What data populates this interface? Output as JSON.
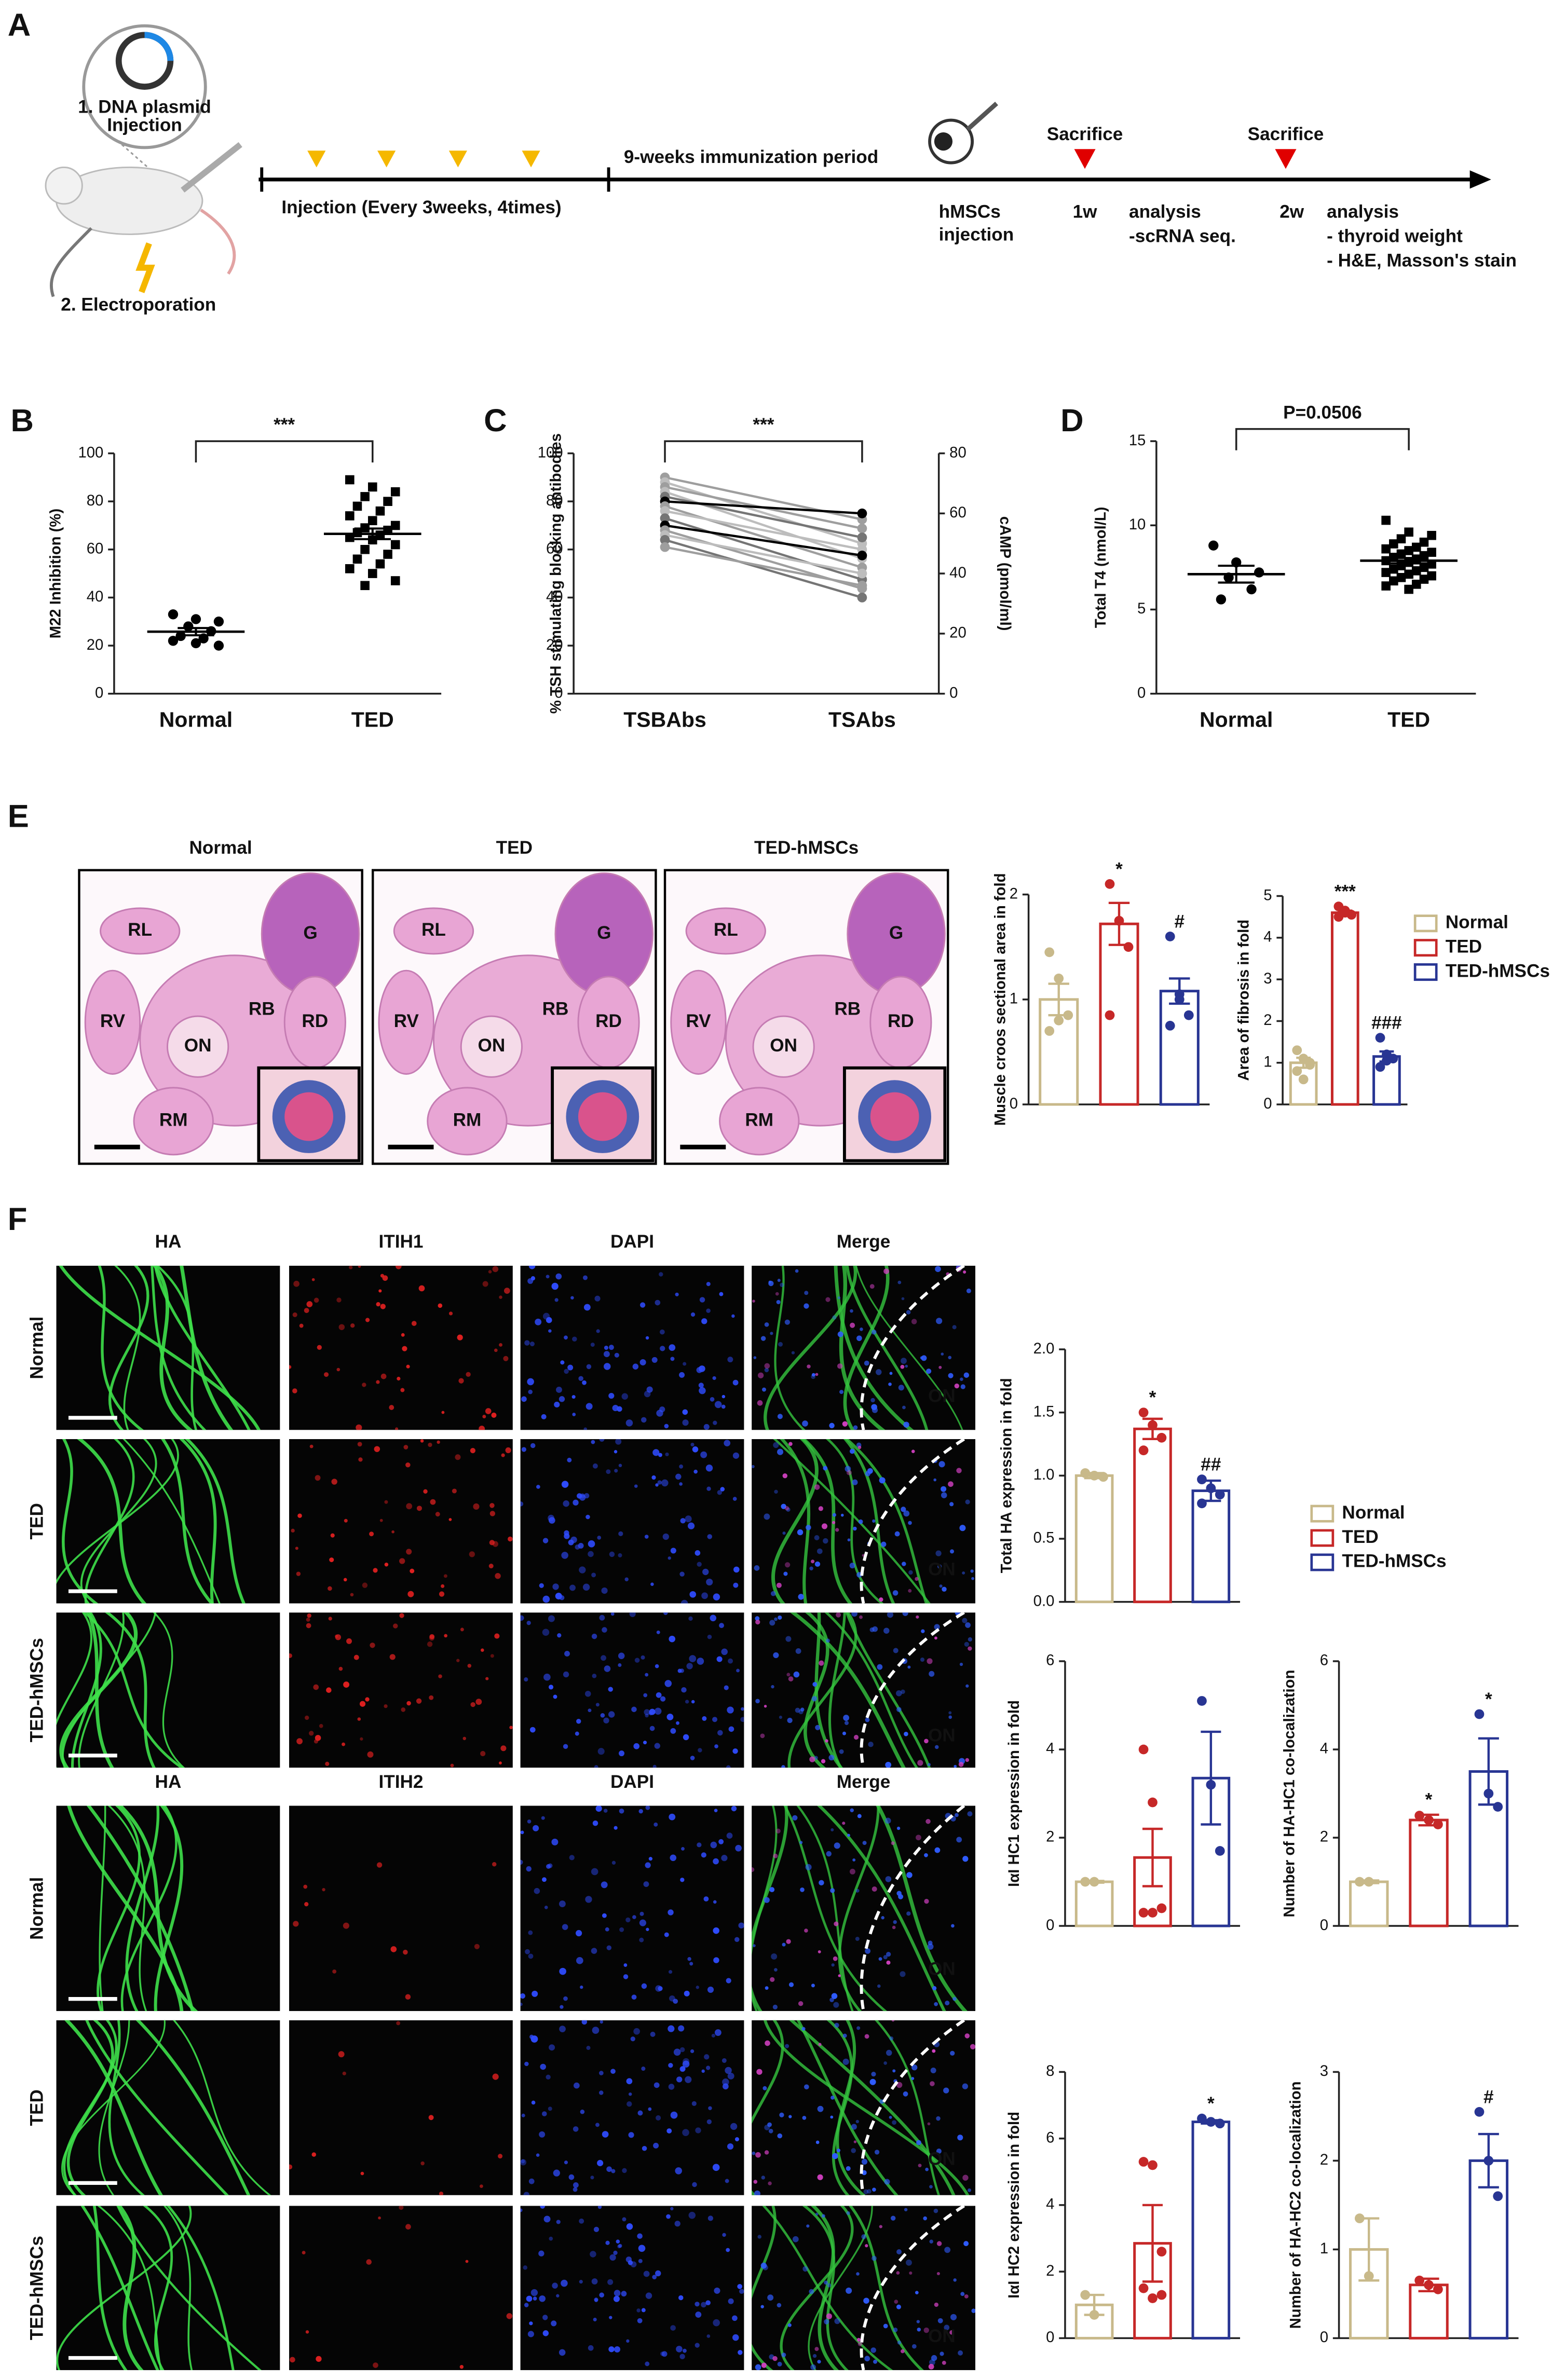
{
  "panel_a": {
    "letter": "A",
    "labels": [
      "1. DNA plasmid",
      "Injection",
      "2. Electroporation"
    ],
    "timeline": [
      "Injection (Every 3weeks, 4times)",
      "9-weeks immunization period",
      "hMSCs",
      "injection",
      "Sacrifice",
      "Sacrifice",
      "1w",
      "analysis",
      "-scRNA seq.",
      "2w",
      "analysis",
      "- thyroid weight",
      "- H&E, Masson's stain"
    ]
  },
  "panel_e": {
    "letter": "E",
    "titles": [
      "Normal",
      "TED",
      "TED-hMSCs"
    ],
    "images": [
      {
        "labels": [
          "RL",
          "G",
          "RV",
          "ON",
          "RB",
          "RD",
          "RM"
        ]
      },
      {
        "labels": [
          "RL",
          "G",
          "RV",
          "ON",
          "RB",
          "RD",
          "RM"
        ]
      },
      {
        "labels": [
          "RL",
          "G",
          "RV",
          "ON",
          "RB",
          "RD",
          "RM"
        ]
      }
    ]
  },
  "panel_f": {
    "letter": "F",
    "blocks": [
      {
        "headers": [
          "HA",
          "ITIH1",
          "DAPI",
          "Merge"
        ],
        "rows": [
          "Normal",
          "TED",
          "TED-hMSCs"
        ],
        "merge_labels": [
          "ON",
          "ON",
          "ON"
        ]
      },
      {
        "headers": [
          "HA",
          "ITIH2",
          "DAPI",
          "Merge"
        ],
        "rows": [
          "Normal",
          "TED",
          "TED-hMSCs"
        ],
        "merge_labels": [
          "ON",
          "ON",
          "ON"
        ]
      }
    ]
  },
  "chart_data": [
    {
      "type": "dot",
      "letter": "B",
      "ylabel": "M22 Inhibition (%)",
      "categories": [
        "Normal",
        "TED"
      ],
      "markers": [
        "circle",
        "square"
      ],
      "groups": [
        {
          "values": [
            33,
            31,
            30,
            28,
            26,
            24,
            23,
            22,
            21,
            20
          ],
          "mean": 25.8,
          "sem": 1.5
        },
        {
          "values": [
            89,
            86,
            84,
            82,
            80,
            78,
            76,
            74,
            72,
            70,
            69,
            68,
            67,
            66,
            65,
            64,
            62,
            60,
            58,
            56,
            54,
            52,
            50,
            47,
            45
          ],
          "mean": 66.5,
          "sem": 2.2
        }
      ],
      "ylim": [
        0,
        100
      ],
      "yticks": [
        0,
        20,
        40,
        60,
        80,
        100
      ],
      "bracket": "***"
    },
    {
      "type": "paired",
      "letter": "C",
      "ylabel": "% TSH stimulating blocking antibodies",
      "y2label": "cAMP (pmol/ml)",
      "categories": [
        "TSBAbs",
        "TSAbs"
      ],
      "value_axes": [
        "y",
        "y2"
      ],
      "ylim": [
        0,
        100
      ],
      "yticks": [
        0,
        20,
        40,
        60,
        80,
        100
      ],
      "y2lim": [
        0,
        80
      ],
      "y2ticks": [
        0,
        20,
        40,
        60,
        80
      ],
      "bracket": "***",
      "series": [
        {
          "color": "#9e9e9e",
          "values": [
            90,
            58
          ]
        },
        {
          "color": "#bdbdbd",
          "values": [
            88,
            50
          ]
        },
        {
          "color": "#9e9e9e",
          "values": [
            86,
            55
          ]
        },
        {
          "color": "#bdbdbd",
          "values": [
            84,
            45
          ]
        },
        {
          "color": "#757575",
          "values": [
            82,
            52
          ]
        },
        {
          "color": "#000000",
          "values": [
            80,
            60
          ]
        },
        {
          "color": "#9e9e9e",
          "values": [
            78,
            42
          ]
        },
        {
          "color": "#bdbdbd",
          "values": [
            76,
            48
          ]
        },
        {
          "color": "#757575",
          "values": [
            73,
            38
          ]
        },
        {
          "color": "#000000",
          "values": [
            70,
            46
          ]
        },
        {
          "color": "#9e9e9e",
          "values": [
            68,
            35
          ]
        },
        {
          "color": "#bdbdbd",
          "values": [
            66,
            40
          ]
        },
        {
          "color": "#757575",
          "values": [
            64,
            32
          ]
        },
        {
          "color": "#9e9e9e",
          "values": [
            61,
            36
          ]
        }
      ]
    },
    {
      "type": "dot",
      "letter": "D",
      "ylabel": "Total T4 (nmol/L)",
      "categories": [
        "Normal",
        "TED"
      ],
      "markers": [
        "circle",
        "square"
      ],
      "groups": [
        {
          "values": [
            8.8,
            7.8,
            7.2,
            6.9,
            6.2,
            5.6
          ],
          "mean": 7.1,
          "sem": 0.5
        },
        {
          "values": [
            10.3,
            9.6,
            9.4,
            9.2,
            9.0,
            8.9,
            8.7,
            8.6,
            8.5,
            8.4,
            8.3,
            8.2,
            8.1,
            8.0,
            7.9,
            7.8,
            7.7,
            7.6,
            7.5,
            7.4,
            7.3,
            7.2,
            7.1,
            7.0,
            6.9,
            6.8,
            6.7,
            6.5,
            6.4,
            6.2
          ],
          "mean": 7.9,
          "sem": 0.16
        }
      ],
      "ylim": [
        0,
        15
      ],
      "yticks": [
        0,
        5,
        10,
        15
      ],
      "bracket": "P=0.0506"
    },
    {
      "type": "bar",
      "ylabel": "Muscle croos sectional area in fold",
      "ylim": [
        0,
        2
      ],
      "yticks": [
        0,
        1,
        2
      ],
      "series": [
        {
          "color": "#c8b98a",
          "value": 1.0,
          "error": 0.15,
          "points": [
            1.45,
            1.2,
            0.85,
            0.7,
            0.8
          ]
        },
        {
          "color": "#c62828",
          "value": 1.72,
          "error": 0.2,
          "points": [
            2.1,
            1.75,
            1.5,
            0.85
          ],
          "note": "*"
        },
        {
          "color": "#283593",
          "value": 1.08,
          "error": 0.12,
          "points": [
            1.6,
            1.05,
            0.85,
            0.75,
            1.0
          ],
          "note": "#"
        }
      ]
    },
    {
      "type": "bar",
      "ylabel": "Area of fibrosis in fold",
      "ylim": [
        0,
        5
      ],
      "yticks": [
        0,
        1,
        2,
        3,
        4,
        5
      ],
      "legend": true,
      "series": [
        {
          "name": "Normal",
          "color": "#c8b98a",
          "value": 1.0,
          "error": 0.12,
          "points": [
            1.3,
            1.1,
            0.95,
            0.8,
            0.6,
            1.0
          ]
        },
        {
          "name": "TED",
          "color": "#c62828",
          "value": 4.6,
          "error": 0.05,
          "points": [
            4.75,
            4.6,
            4.55,
            4.5,
            4.65
          ],
          "note": "***"
        },
        {
          "name": "TED-hMSCs",
          "color": "#283593",
          "value": 1.15,
          "error": 0.12,
          "points": [
            1.6,
            1.2,
            1.1,
            0.9,
            1.05
          ],
          "note": "###"
        }
      ]
    },
    {
      "type": "bar",
      "ylabel": "Total HA expression in fold",
      "ylim": [
        0,
        2
      ],
      "yticks": [
        {
          "value": 0,
          "label": "0.0"
        },
        {
          "value": 0.5,
          "label": "0.5"
        },
        {
          "value": 1,
          "label": "1.0"
        },
        {
          "value": 1.5,
          "label": "1.5"
        },
        {
          "value": 2,
          "label": "2.0"
        }
      ],
      "legend": true,
      "series": [
        {
          "name": "Normal",
          "color": "#c8b98a",
          "value": 1.0,
          "error": 0.02,
          "points": [
            1.02,
            1.0,
            0.99
          ]
        },
        {
          "name": "TED",
          "color": "#c62828",
          "value": 1.37,
          "error": 0.08,
          "points": [
            1.5,
            1.4,
            1.3,
            1.2
          ],
          "note": "*"
        },
        {
          "name": "TED-hMSCs",
          "color": "#283593",
          "value": 0.88,
          "error": 0.08,
          "points": [
            0.97,
            0.9,
            0.85,
            0.78
          ],
          "note": "##"
        }
      ]
    },
    {
      "type": "bar",
      "ylabel": "IαI HC1 expression in fold",
      "ylim": [
        0,
        6
      ],
      "yticks": [
        0,
        2,
        4,
        6
      ],
      "series": [
        {
          "color": "#c8b98a",
          "value": 1.0,
          "error": 0.02,
          "points": [
            1,
            1
          ]
        },
        {
          "color": "#c62828",
          "value": 1.55,
          "error": 0.65,
          "points": [
            4.0,
            2.8,
            0.4,
            0.3,
            0.3
          ]
        },
        {
          "color": "#283593",
          "value": 3.35,
          "error": 1.05,
          "points": [
            5.1,
            3.2,
            1.7
          ]
        }
      ]
    },
    {
      "type": "bar",
      "ylabel": "Number of HA-HC1 co-localization",
      "ylim": [
        0,
        6
      ],
      "yticks": [
        0,
        2,
        4,
        6
      ],
      "series": [
        {
          "color": "#c8b98a",
          "value": 1.0,
          "error": 0.03,
          "points": [
            1,
            1
          ]
        },
        {
          "color": "#c62828",
          "value": 2.4,
          "error": 0.12,
          "points": [
            2.5,
            2.4,
            2.3
          ],
          "note": "*"
        },
        {
          "color": "#283593",
          "value": 3.5,
          "error": 0.75,
          "points": [
            4.8,
            3.0,
            2.7
          ],
          "note": "*"
        }
      ]
    },
    {
      "type": "bar",
      "ylabel": "IαI HC2 expression in fold",
      "ylim": [
        0,
        8
      ],
      "yticks": [
        0,
        2,
        4,
        6,
        8
      ],
      "series": [
        {
          "color": "#c8b98a",
          "value": 1.0,
          "error": 0.3,
          "points": [
            1.3,
            0.7
          ]
        },
        {
          "color": "#c62828",
          "value": 2.85,
          "error": 1.15,
          "points": [
            5.3,
            5.2,
            2.6,
            1.5,
            1.2,
            1.3
          ]
        },
        {
          "color": "#283593",
          "value": 6.5,
          "error": 0.05,
          "points": [
            6.6,
            6.5,
            6.45
          ],
          "note": "*"
        }
      ]
    },
    {
      "type": "bar",
      "ylabel": "Number of HA-HC2 co-localization",
      "ylim": [
        0,
        3
      ],
      "yticks": [
        0,
        1,
        2,
        3
      ],
      "series": [
        {
          "color": "#c8b98a",
          "value": 1.0,
          "error": 0.35,
          "points": [
            1.35,
            0.7
          ]
        },
        {
          "color": "#c62828",
          "value": 0.6,
          "error": 0.07,
          "points": [
            0.65,
            0.6,
            0.55
          ]
        },
        {
          "color": "#283593",
          "value": 2.0,
          "error": 0.3,
          "points": [
            2.55,
            2.0,
            1.6
          ],
          "note": "#"
        }
      ]
    }
  ]
}
